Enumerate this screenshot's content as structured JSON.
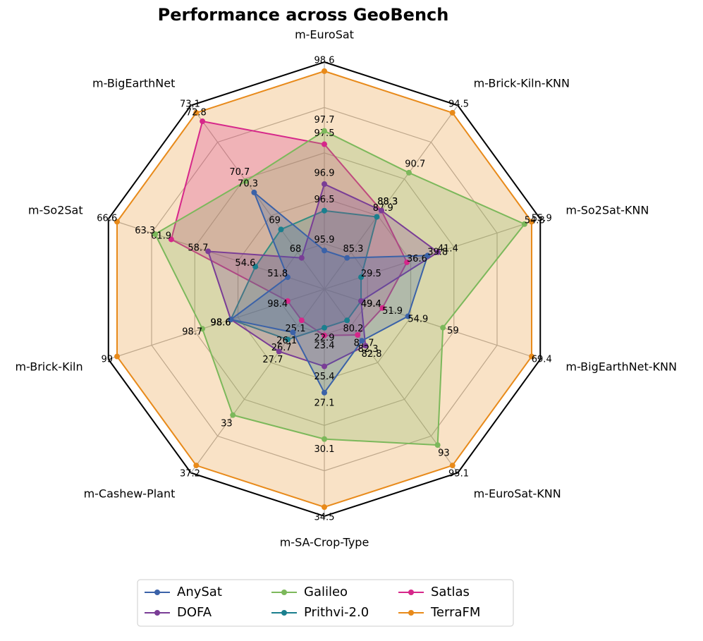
{
  "chart_data": {
    "type": "radar",
    "title": "Performance across GeoBench",
    "categories": [
      "m-EuroSat",
      "m-Brick-Kiln-KNN",
      "m-So2Sat-KNN",
      "m-BigEarthNet-KNN",
      "m-EuroSat-KNN",
      "m-SA-Crop-Type",
      "m-Cashew-Plant",
      "m-Brick-Kiln",
      "m-So2Sat",
      "m-BigEarthNet"
    ],
    "series": [
      {
        "name": "AnySat",
        "color": "#3b62a8",
        "values": [
          95.9,
          85.3,
          39.8,
          54.9,
          82.3,
          27.1,
          26.1,
          98.6,
          51.8,
          70.3
        ]
      },
      {
        "name": "DOFA",
        "color": "#7a3d96",
        "values": [
          96.9,
          88.3,
          41.4,
          49.4,
          82.8,
          25.4,
          27.7,
          98.6,
          58.7,
          68.0
        ]
      },
      {
        "name": "Galileo",
        "color": "#7cb85b",
        "values": [
          97.7,
          90.7,
          54.8,
          59.0,
          93.0,
          30.1,
          33.0,
          98.7,
          63.3,
          70.7
        ]
      },
      {
        "name": "Prithvi-2.0",
        "color": "#1a7f8e",
        "values": [
          96.5,
          87.9,
          29.5,
          49.4,
          80.2,
          22.9,
          26.7,
          98.6,
          54.6,
          69.0
        ]
      },
      {
        "name": "Satlas",
        "color": "#d6278a",
        "values": [
          97.5,
          88.3,
          36.6,
          51.9,
          81.7,
          23.4,
          25.1,
          98.4,
          61.9,
          72.8
        ]
      },
      {
        "name": "TerraFM",
        "color": "#e88a1a",
        "values": [
          98.6,
          94.5,
          55.9,
          69.4,
          95.1,
          34.5,
          37.2,
          99.0,
          66.6,
          73.1
        ]
      }
    ],
    "legend": "lower center"
  }
}
